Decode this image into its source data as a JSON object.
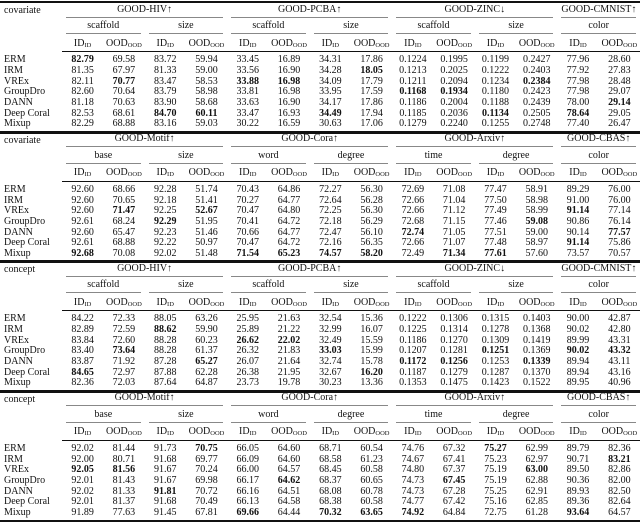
{
  "header_labels": {
    "id": "ID",
    "id_sub": "ID",
    "ood": "OOD",
    "ood_sub": "OOD"
  },
  "blocks": [
    {
      "shift": "covariate",
      "datasets": [
        {
          "name": "GOOD-HIV↑",
          "domains": [
            "scaffold",
            "size"
          ]
        },
        {
          "name": "GOOD-PCBA↑",
          "domains": [
            "scaffold",
            "size"
          ]
        },
        {
          "name": "GOOD-ZINC↓",
          "domains": [
            "scaffold",
            "size"
          ]
        },
        {
          "name": "GOOD-CMNIST↑",
          "domains": [
            "color"
          ]
        }
      ],
      "rows": [
        {
          "method": "ERM",
          "values": [
            "82.79",
            "69.58",
            "83.72",
            "59.94",
            "33.45",
            "16.89",
            "34.31",
            "17.86",
            "0.1224",
            "0.1995",
            "0.1199",
            "0.2427",
            "77.96",
            "28.60"
          ],
          "bold": [
            0
          ]
        },
        {
          "method": "IRM",
          "values": [
            "81.35",
            "67.97",
            "81.33",
            "59.00",
            "33.56",
            "16.90",
            "34.28",
            "18.05",
            "0.1213",
            "0.2025",
            "0.1222",
            "0.2403",
            "77.92",
            "27.83"
          ],
          "bold": [
            7
          ]
        },
        {
          "method": "VREx",
          "values": [
            "82.11",
            "70.77",
            "83.47",
            "58.53",
            "33.88",
            "16.98",
            "34.09",
            "17.79",
            "0.1211",
            "0.2094",
            "0.1234",
            "0.2384",
            "77.98",
            "28.48"
          ],
          "bold": [
            1,
            4,
            5,
            11
          ]
        },
        {
          "method": "GroupDro",
          "values": [
            "82.60",
            "70.64",
            "83.79",
            "58.98",
            "33.81",
            "16.98",
            "33.95",
            "17.59",
            "0.1168",
            "0.1934",
            "0.1180",
            "0.2423",
            "77.98",
            "29.07"
          ],
          "bold": [
            8,
            9
          ]
        },
        {
          "method": "DANN",
          "values": [
            "81.18",
            "70.63",
            "83.90",
            "58.68",
            "33.63",
            "16.90",
            "34.17",
            "17.86",
            "0.1186",
            "0.2004",
            "0.1188",
            "0.2439",
            "78.00",
            "29.14"
          ],
          "bold": [
            13
          ]
        },
        {
          "method": "Deep Coral",
          "values": [
            "82.53",
            "68.61",
            "84.70",
            "60.11",
            "33.47",
            "16.93",
            "34.49",
            "17.94",
            "0.1185",
            "0.2036",
            "0.1134",
            "0.2505",
            "78.64",
            "29.05"
          ],
          "bold": [
            2,
            3,
            6,
            10,
            12
          ]
        },
        {
          "method": "Mixup",
          "values": [
            "82.29",
            "68.88",
            "83.16",
            "59.03",
            "30.22",
            "16.59",
            "30.63",
            "17.06",
            "0.1279",
            "0.2240",
            "0.1255",
            "0.2748",
            "77.40",
            "26.47"
          ],
          "bold": []
        }
      ]
    },
    {
      "shift": "covariate",
      "datasets": [
        {
          "name": "GOOD-Motif↑",
          "domains": [
            "base",
            "size"
          ]
        },
        {
          "name": "GOOD-Cora↑",
          "domains": [
            "word",
            "degree"
          ]
        },
        {
          "name": "GOOD-Arxiv↑",
          "domains": [
            "time",
            "degree"
          ]
        },
        {
          "name": "GOOD-CBAS↑",
          "domains": [
            "color"
          ]
        }
      ],
      "rows": [
        {
          "method": "ERM",
          "values": [
            "92.60",
            "68.66",
            "92.28",
            "51.74",
            "70.43",
            "64.86",
            "72.27",
            "56.30",
            "72.69",
            "71.08",
            "77.47",
            "58.91",
            "89.29",
            "76.00"
          ],
          "bold": []
        },
        {
          "method": "IRM",
          "values": [
            "92.60",
            "70.65",
            "92.18",
            "51.41",
            "70.27",
            "64.77",
            "72.64",
            "56.28",
            "72.66",
            "71.04",
            "77.50",
            "58.98",
            "91.00",
            "76.00"
          ],
          "bold": []
        },
        {
          "method": "VREx",
          "values": [
            "92.60",
            "71.47",
            "92.25",
            "52.67",
            "70.47",
            "64.80",
            "72.25",
            "56.30",
            "72.66",
            "71.12",
            "77.49",
            "58.99",
            "91.14",
            "77.14"
          ],
          "bold": [
            1,
            3,
            12
          ]
        },
        {
          "method": "GroupDro",
          "values": [
            "92.61",
            "68.24",
            "92.29",
            "51.95",
            "70.41",
            "64.72",
            "72.18",
            "56.29",
            "72.68",
            "71.15",
            "77.46",
            "59.08",
            "90.86",
            "76.14"
          ],
          "bold": [
            2,
            11
          ]
        },
        {
          "method": "DANN",
          "values": [
            "92.60",
            "65.47",
            "92.23",
            "51.46",
            "70.66",
            "64.77",
            "72.47",
            "56.10",
            "72.74",
            "71.05",
            "77.51",
            "59.00",
            "90.14",
            "77.57"
          ],
          "bold": [
            8,
            13
          ]
        },
        {
          "method": "Deep Coral",
          "values": [
            "92.61",
            "68.88",
            "92.22",
            "50.97",
            "70.47",
            "64.72",
            "72.16",
            "56.35",
            "72.66",
            "71.07",
            "77.48",
            "58.97",
            "91.14",
            "75.86"
          ],
          "bold": [
            12
          ]
        },
        {
          "method": "Mixup",
          "values": [
            "92.68",
            "70.08",
            "92.02",
            "51.48",
            "71.54",
            "65.23",
            "74.57",
            "58.20",
            "72.49",
            "71.34",
            "77.61",
            "57.60",
            "73.57",
            "70.57"
          ],
          "bold": [
            0,
            4,
            5,
            6,
            7,
            9,
            10
          ]
        }
      ]
    },
    {
      "shift": "concept",
      "datasets": [
        {
          "name": "GOOD-HIV↑",
          "domains": [
            "scaffold",
            "size"
          ]
        },
        {
          "name": "GOOD-PCBA↑",
          "domains": [
            "scaffold",
            "size"
          ]
        },
        {
          "name": "GOOD-ZINC↓",
          "domains": [
            "scaffold",
            "size"
          ]
        },
        {
          "name": "GOOD-CMNIST↑",
          "domains": [
            "color"
          ]
        }
      ],
      "rows": [
        {
          "method": "ERM",
          "values": [
            "84.22",
            "72.33",
            "88.05",
            "63.26",
            "25.95",
            "21.63",
            "32.54",
            "15.36",
            "0.1222",
            "0.1306",
            "0.1315",
            "0.1403",
            "90.00",
            "42.87"
          ],
          "bold": []
        },
        {
          "method": "IRM",
          "values": [
            "82.89",
            "72.59",
            "88.62",
            "59.90",
            "25.89",
            "21.22",
            "32.99",
            "16.07",
            "0.1225",
            "0.1314",
            "0.1278",
            "0.1368",
            "90.02",
            "42.80"
          ],
          "bold": [
            2
          ]
        },
        {
          "method": "VREx",
          "values": [
            "83.84",
            "72.60",
            "88.28",
            "60.23",
            "26.62",
            "22.02",
            "32.49",
            "15.59",
            "0.1186",
            "0.1270",
            "0.1309",
            "0.1419",
            "89.99",
            "43.31"
          ],
          "bold": [
            4,
            5
          ]
        },
        {
          "method": "GroupDro",
          "values": [
            "83.40",
            "73.64",
            "88.28",
            "61.37",
            "26.32",
            "21.83",
            "33.03",
            "15.99",
            "0.1207",
            "0.1281",
            "0.1251",
            "0.1369",
            "90.02",
            "43.32"
          ],
          "bold": [
            1,
            6,
            10,
            12,
            13
          ]
        },
        {
          "method": "DANN",
          "values": [
            "83.87",
            "71.92",
            "87.28",
            "65.27",
            "26.07",
            "21.64",
            "32.74",
            "15.78",
            "0.1172",
            "0.1256",
            "0.1253",
            "0.1339",
            "89.94",
            "43.11"
          ],
          "bold": [
            3,
            8,
            9,
            11
          ]
        },
        {
          "method": "Deep Coral",
          "values": [
            "84.65",
            "72.97",
            "87.88",
            "62.28",
            "26.38",
            "21.95",
            "32.67",
            "16.20",
            "0.1187",
            "0.1279",
            "0.1287",
            "0.1370",
            "89.94",
            "43.16"
          ],
          "bold": [
            0,
            7
          ]
        },
        {
          "method": "Mixup",
          "values": [
            "82.36",
            "72.03",
            "87.64",
            "64.87",
            "23.73",
            "19.78",
            "30.23",
            "13.36",
            "0.1353",
            "0.1475",
            "0.1423",
            "0.1522",
            "89.95",
            "40.96"
          ],
          "bold": []
        }
      ]
    },
    {
      "shift": "concept",
      "datasets": [
        {
          "name": "GOOD-Motif↑",
          "domains": [
            "base",
            "size"
          ]
        },
        {
          "name": "GOOD-Cora↑",
          "domains": [
            "word",
            "degree"
          ]
        },
        {
          "name": "GOOD-Arxiv↑",
          "domains": [
            "time",
            "degree"
          ]
        },
        {
          "name": "GOOD-CBAS↑",
          "domains": [
            "color"
          ]
        }
      ],
      "rows": [
        {
          "method": "ERM",
          "values": [
            "92.02",
            "81.44",
            "91.73",
            "70.75",
            "66.05",
            "64.60",
            "68.71",
            "60.54",
            "74.76",
            "67.32",
            "75.27",
            "62.99",
            "89.79",
            "82.36"
          ],
          "bold": [
            3,
            10
          ]
        },
        {
          "method": "IRM",
          "values": [
            "92.00",
            "80.71",
            "91.68",
            "69.77",
            "66.09",
            "64.60",
            "68.58",
            "61.23",
            "74.67",
            "67.41",
            "75.23",
            "62.97",
            "90.71",
            "83.21"
          ],
          "bold": [
            13
          ]
        },
        {
          "method": "VREx",
          "values": [
            "92.05",
            "81.56",
            "91.67",
            "70.24",
            "66.00",
            "64.57",
            "68.45",
            "60.58",
            "74.80",
            "67.37",
            "75.19",
            "63.00",
            "89.50",
            "82.86"
          ],
          "bold": [
            0,
            1,
            11
          ]
        },
        {
          "method": "GroupDro",
          "values": [
            "92.01",
            "81.43",
            "91.67",
            "69.98",
            "66.17",
            "64.62",
            "68.37",
            "60.65",
            "74.73",
            "67.45",
            "75.19",
            "62.88",
            "90.36",
            "82.00"
          ],
          "bold": [
            5,
            9
          ]
        },
        {
          "method": "DANN",
          "values": [
            "92.02",
            "81.33",
            "91.81",
            "70.72",
            "66.16",
            "64.51",
            "68.08",
            "60.78",
            "74.73",
            "67.28",
            "75.25",
            "62.91",
            "89.93",
            "82.50"
          ],
          "bold": [
            2
          ]
        },
        {
          "method": "Deep Coral",
          "values": [
            "92.01",
            "81.37",
            "91.68",
            "70.49",
            "66.13",
            "64.58",
            "68.38",
            "60.58",
            "74.77",
            "67.42",
            "75.16",
            "62.85",
            "89.36",
            "82.64"
          ],
          "bold": []
        },
        {
          "method": "Mixup",
          "values": [
            "91.89",
            "77.63",
            "91.45",
            "67.81",
            "69.66",
            "64.44",
            "70.32",
            "63.65",
            "74.92",
            "64.84",
            "72.75",
            "61.28",
            "93.64",
            "64.57"
          ],
          "bold": [
            4,
            6,
            7,
            8,
            12
          ]
        }
      ]
    }
  ]
}
